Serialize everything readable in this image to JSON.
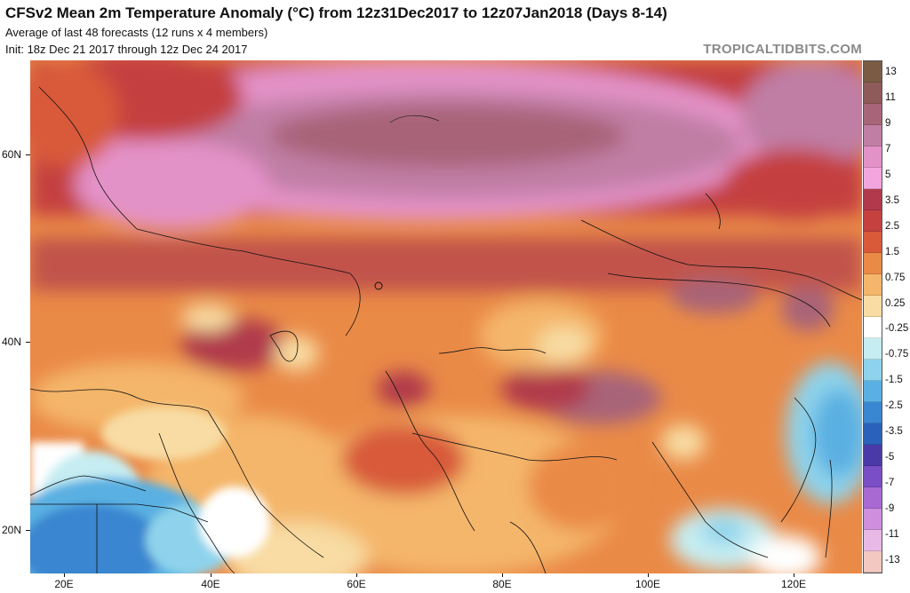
{
  "header": {
    "title": "CFSv2 Mean 2m Temperature Anomaly (°C) from 12z31Dec2017 to 12z07Jan2018 (Days 8-14)",
    "subtitle1": "Average of last 48 forecasts (12 runs x 4 members)",
    "subtitle2": "Init: 18z Dec 21 2017 through 12z Dec 24 2017",
    "brand": "TROPICALTIDBITS.COM"
  },
  "axes": {
    "lat_labels": [
      "60N",
      "40N",
      "20N"
    ],
    "lon_labels": [
      "20E",
      "40E",
      "60E",
      "80E",
      "100E",
      "120E"
    ]
  },
  "colorbar": {
    "labels": [
      "13",
      "11",
      "9",
      "7",
      "5",
      "3.5",
      "2.5",
      "1.5",
      "0.75",
      "0.25",
      "-0.25",
      "-0.75",
      "-1.5",
      "-2.5",
      "-3.5",
      "-5",
      "-7",
      "-9",
      "-11",
      "-13"
    ],
    "colors": [
      "#7a5c45",
      "#8f5a5a",
      "#a86478",
      "#c07ea4",
      "#e392c8",
      "#f3a6dd",
      "#b03a4c",
      "#c4413f",
      "#d85a3a",
      "#ea8a47",
      "#f4b66a",
      "#f8dca3",
      "#ffffff",
      "#c6edf2",
      "#8ed3eb",
      "#5ab0e2",
      "#3a86d0",
      "#2a62bb",
      "#4a3aa8",
      "#7a4ec4",
      "#a86ad2",
      "#cf8fdc",
      "#e8b9e6",
      "#f3c8c0"
    ]
  },
  "map": {
    "region": "Europe, Middle East, Central Asia, East Asia, North Africa",
    "anomaly_scale": "2m temperature anomaly (°C)"
  }
}
